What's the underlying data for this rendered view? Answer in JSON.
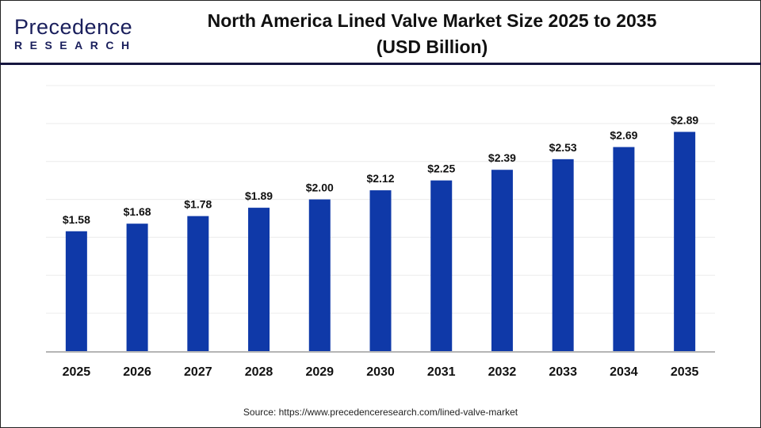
{
  "logo": {
    "line1": "Precedence",
    "line2": "RESEARCH"
  },
  "title_line1": "North America Lined Valve Market Size 2025 to 2035",
  "title_line2": "(USD Billion)",
  "source": "Source: https://www.precedenceresearch.com/lined-valve-market",
  "colors": {
    "bar": "#0f39a8",
    "header_line": "#16163f"
  },
  "chart_data": {
    "type": "bar",
    "title": "North America Lined Valve Market Size 2025 to 2035 (USD Billion)",
    "categories": [
      "2025",
      "2026",
      "2027",
      "2028",
      "2029",
      "2030",
      "2031",
      "2032",
      "2033",
      "2034",
      "2035"
    ],
    "values": [
      1.58,
      1.68,
      1.78,
      1.89,
      2.0,
      2.12,
      2.25,
      2.39,
      2.53,
      2.69,
      2.89
    ],
    "data_labels": [
      "$1.58",
      "$1.68",
      "$1.78",
      "$1.89",
      "$2.00",
      "$2.12",
      "$2.25",
      "$2.39",
      "$2.53",
      "$2.69",
      "$2.89"
    ],
    "xlabel": "",
    "ylabel": "",
    "ylim": [
      0,
      3.5
    ],
    "grid": true,
    "legend": "none"
  }
}
